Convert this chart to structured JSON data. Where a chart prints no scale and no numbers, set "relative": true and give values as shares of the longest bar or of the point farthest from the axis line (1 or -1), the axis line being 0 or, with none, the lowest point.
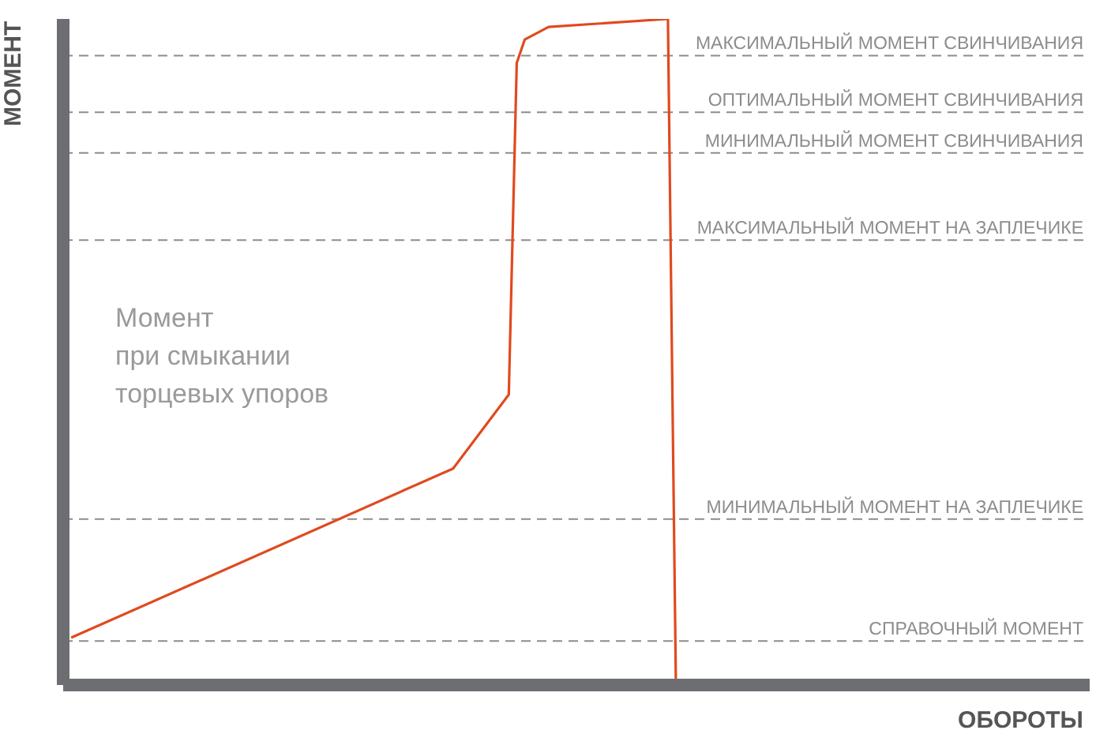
{
  "chart_data": {
    "type": "line",
    "relative": true,
    "xlabel": "ОБОРОТЫ",
    "ylabel": "МОМЕНТ",
    "marker": "none",
    "line_style": "solid",
    "categories": [
      null,
      null,
      null,
      null,
      null,
      null,
      null,
      null,
      null,
      null,
      null,
      null,
      null,
      null,
      null,
      null,
      null,
      null,
      null,
      null,
      null,
      null,
      null,
      null,
      null,
      null,
      null,
      null,
      null,
      null,
      null,
      null,
      null,
      null,
      null,
      null,
      null,
      null,
      null,
      null,
      null,
      null,
      null,
      null,
      null,
      null,
      null,
      null,
      null,
      null,
      null,
      null,
      null,
      null,
      null,
      null,
      null,
      null,
      null,
      null,
      null,
      null,
      null,
      null,
      null,
      null,
      null,
      null,
      null,
      null,
      null,
      null,
      null,
      null,
      null,
      null,
      null,
      null,
      null,
      null,
      null,
      null,
      null,
      null,
      null,
      null,
      null,
      null,
      null,
      null,
      null,
      null,
      null,
      null,
      null,
      null,
      null,
      null,
      null,
      null,
      null,
      null,
      null,
      null,
      null,
      null,
      null,
      null,
      null,
      null,
      null,
      null,
      null,
      null,
      null,
      null,
      null,
      null,
      null,
      null,
      null,
      null,
      null,
      null,
      null,
      null,
      null,
      null,
      null,
      null
    ],
    "series": [
      {
        "color": "#e04a1f",
        "values": [
          null,
          0.071,
          null,
          null,
          null,
          null,
          null,
          null,
          null,
          null,
          null,
          null,
          null,
          null,
          null,
          null,
          null,
          null,
          null,
          null,
          null,
          null,
          null,
          null,
          null,
          null,
          null,
          null,
          null,
          null,
          null,
          null,
          null,
          null,
          null,
          null,
          null,
          null,
          null,
          null,
          null,
          null,
          null,
          null,
          null,
          null,
          null,
          null,
          null,
          0.325,
          null,
          null,
          null,
          null,
          null,
          null,
          0.436,
          0.934,
          0.969,
          null,
          null,
          0.988,
          null,
          null,
          null,
          null,
          null,
          null,
          null,
          null,
          null,
          null,
          null,
          null,
          null,
          null,
          1,
          0,
          null,
          null,
          null,
          null,
          null,
          null,
          null,
          null,
          null,
          null,
          null,
          null,
          null,
          null,
          null,
          null,
          null,
          null,
          null,
          null,
          null,
          null,
          null,
          null,
          null,
          null,
          null,
          null,
          null,
          null,
          null,
          null,
          null,
          null,
          null,
          null,
          null,
          null,
          null,
          null,
          null,
          null,
          null,
          null,
          null,
          null,
          null,
          null,
          null,
          null,
          null,
          null
        ]
      }
    ],
    "ref_lines": [
      {
        "axis": "y",
        "value": 0.945,
        "label": "МАКСИМАЛЬНЫЙ МОМЕНТ СВИНЧИВАНИЯ",
        "color": "#8c8c8c",
        "line_style": "dashed"
      },
      {
        "axis": "y",
        "value": 0.86,
        "label": "ОПТИМАЛЬНЫЙ МОМЕНТ СВИНЧИВАНИЯ",
        "color": "#8c8c8c",
        "line_style": "dashed"
      },
      {
        "axis": "y",
        "value": 0.799,
        "label": "МИНИМАЛЬНЫЙ МОМЕНТ СВИНЧИВАНИЯ",
        "color": "#8c8c8c",
        "line_style": "dashed"
      },
      {
        "axis": "y",
        "value": 0.668,
        "label": "МАКСИМАЛЬНЫЙ МОМЕНТ НА ЗАПЛЕЧИКЕ",
        "color": "#8c8c8c",
        "line_style": "dashed"
      },
      {
        "axis": "y",
        "value": 0.249,
        "label": "МИНИМАЛЬНЫЙ МОМЕНТ НА ЗАПЛЕЧИКЕ",
        "color": "#8c8c8c",
        "line_style": "dashed"
      },
      {
        "axis": "y",
        "value": 0.066,
        "label": "СПРАВОЧНЫЙ МОМЕНТ",
        "color": "#8c8c8c",
        "line_style": "dashed"
      }
    ],
    "annotations": [
      "Момент\nпри смыкании\nторцевых упоров"
    ]
  }
}
